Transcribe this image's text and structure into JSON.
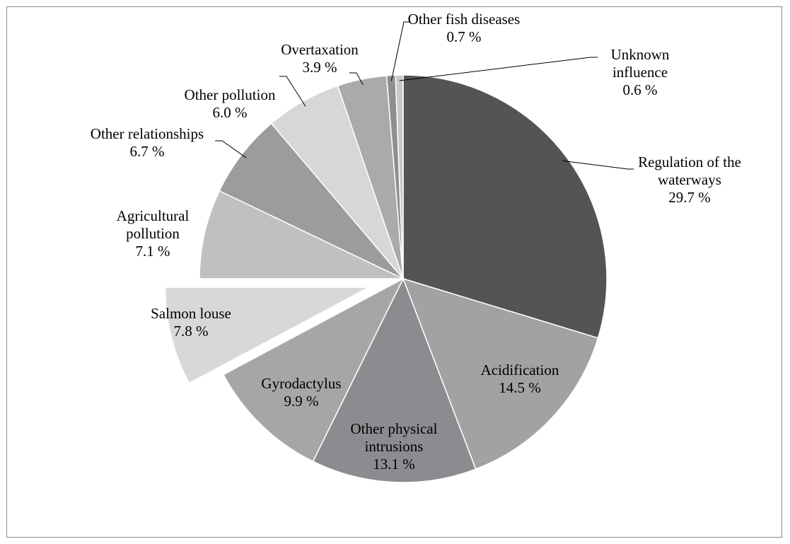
{
  "chart_data": {
    "type": "pie",
    "start_angle_deg": 0,
    "direction": "clockwise",
    "exploded": [
      "Salmon louse"
    ],
    "slices": [
      {
        "label": "Regulation of the waterways",
        "value": 29.7,
        "value_label": "29.7 %",
        "color": "#545454"
      },
      {
        "label": "Acidification",
        "value": 14.5,
        "value_label": "14.5 %",
        "color": "#a2a2a2"
      },
      {
        "label": "Other physical intrusions",
        "value": 13.1,
        "value_label": "13.1 %",
        "color": "#8c8b90"
      },
      {
        "label": "Gyrodactylus",
        "value": 9.9,
        "value_label": "9.9 %",
        "color": "#a6a6a6"
      },
      {
        "label": "Salmon louse",
        "value": 7.8,
        "value_label": "7.8 %",
        "color": "#d8d8d8"
      },
      {
        "label": "Agricultural pollution",
        "value": 7.1,
        "value_label": "7.1 %",
        "color": "#c0c0c0"
      },
      {
        "label": "Other relationships",
        "value": 6.7,
        "value_label": "6.7 %",
        "color": "#9c9c9c"
      },
      {
        "label": "Other pollution",
        "value": 6.0,
        "value_label": "6.0 %",
        "color": "#d7d7d7"
      },
      {
        "label": "Overtaxation",
        "value": 3.9,
        "value_label": "3.9 %",
        "color": "#aaaaaa"
      },
      {
        "label": "Other fish diseases",
        "value": 0.7,
        "value_label": "0.7 %",
        "color": "#8f8f8f"
      },
      {
        "label": "Unknown influence",
        "value": 0.6,
        "value_label": "0.6 %",
        "color": "#c8c8c8"
      }
    ]
  }
}
